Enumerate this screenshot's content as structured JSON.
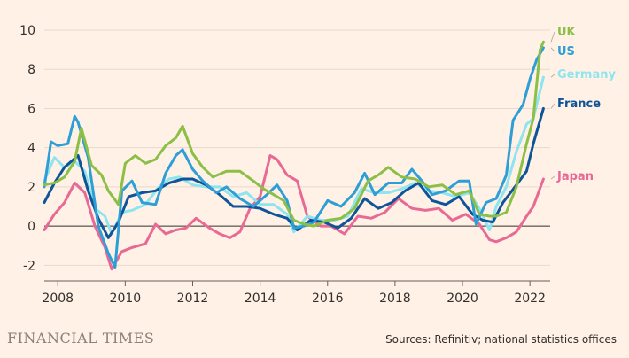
{
  "chart_data": {
    "type": "line",
    "title": "",
    "xlabel": "",
    "ylabel": "",
    "xlim": [
      2007.6,
      2022.6
    ],
    "ylim": [
      -2.8,
      10
    ],
    "y_ticks": [
      -2,
      0,
      2,
      4,
      6,
      8,
      10
    ],
    "x_ticks": [
      2008,
      2010,
      2012,
      2014,
      2016,
      2018,
      2020,
      2022
    ],
    "grid": true,
    "legend": "right, end of lines",
    "series": [
      {
        "name": "UK",
        "color": "#8CBF47",
        "x": [
          2007.6,
          2007.9,
          2008.2,
          2008.5,
          2008.7,
          2009.0,
          2009.3,
          2009.5,
          2009.8,
          2010.0,
          2010.3,
          2010.6,
          2010.9,
          2011.2,
          2011.5,
          2011.7,
          2012.0,
          2012.3,
          2012.6,
          2013.0,
          2013.4,
          2013.8,
          2014.1,
          2014.4,
          2014.7,
          2015.0,
          2015.3,
          2015.6,
          2016.0,
          2016.4,
          2016.8,
          2017.2,
          2017.5,
          2017.8,
          2018.2,
          2018.6,
          2019.0,
          2019.4,
          2019.8,
          2020.2,
          2020.5,
          2020.8,
          2021.0,
          2021.3,
          2021.6,
          2021.9,
          2022.1,
          2022.3,
          2022.4
        ],
        "values": [
          2.1,
          2.2,
          2.5,
          3.3,
          5.0,
          3.1,
          2.6,
          1.8,
          1.1,
          3.2,
          3.6,
          3.2,
          3.4,
          4.1,
          4.5,
          5.1,
          3.7,
          3.0,
          2.5,
          2.8,
          2.8,
          2.3,
          1.9,
          1.6,
          1.3,
          0.3,
          0.1,
          0.0,
          0.3,
          0.4,
          0.9,
          2.3,
          2.6,
          3.0,
          2.5,
          2.4,
          2.0,
          2.1,
          1.6,
          1.8,
          0.6,
          0.5,
          0.5,
          0.7,
          2.0,
          4.2,
          5.5,
          9.0,
          9.4
        ]
      },
      {
        "name": "US",
        "color": "#2E9ED6",
        "x": [
          2007.6,
          2007.8,
          2008.0,
          2008.3,
          2008.5,
          2008.6,
          2008.9,
          2009.2,
          2009.5,
          2009.7,
          2009.9,
          2010.2,
          2010.5,
          2010.9,
          2011.2,
          2011.5,
          2011.7,
          2012.0,
          2012.3,
          2012.7,
          2013.0,
          2013.4,
          2013.8,
          2014.2,
          2014.5,
          2014.8,
          2015.0,
          2015.3,
          2015.6,
          2016.0,
          2016.4,
          2016.8,
          2017.1,
          2017.4,
          2017.8,
          2018.2,
          2018.5,
          2018.8,
          2019.1,
          2019.5,
          2019.9,
          2020.2,
          2020.4,
          2020.7,
          2021.0,
          2021.3,
          2021.5,
          2021.8,
          2022.0,
          2022.2,
          2022.4
        ],
        "values": [
          2.0,
          4.3,
          4.1,
          4.2,
          5.6,
          5.3,
          3.5,
          0.0,
          -1.4,
          -2.1,
          1.8,
          2.3,
          1.2,
          1.1,
          2.7,
          3.6,
          3.9,
          2.9,
          2.3,
          1.7,
          2.0,
          1.4,
          1.0,
          1.6,
          2.1,
          1.3,
          -0.1,
          0.0,
          0.2,
          1.3,
          1.0,
          1.7,
          2.7,
          1.6,
          2.2,
          2.2,
          2.9,
          2.3,
          1.6,
          1.8,
          2.3,
          2.3,
          0.1,
          1.2,
          1.4,
          2.6,
          5.4,
          6.2,
          7.5,
          8.5,
          9.1
        ]
      },
      {
        "name": "Germany",
        "color": "#8EE4EF",
        "x": [
          2007.6,
          2007.9,
          2008.2,
          2008.5,
          2008.8,
          2009.1,
          2009.4,
          2009.6,
          2009.9,
          2010.2,
          2010.6,
          2011.0,
          2011.3,
          2011.6,
          2012.0,
          2012.4,
          2012.8,
          2013.2,
          2013.6,
          2014.0,
          2014.4,
          2014.8,
          2015.0,
          2015.4,
          2015.8,
          2016.2,
          2016.6,
          2017.0,
          2017.4,
          2017.8,
          2018.2,
          2018.6,
          2019.0,
          2019.4,
          2019.8,
          2020.2,
          2020.5,
          2020.8,
          2021.0,
          2021.3,
          2021.6,
          2021.9,
          2022.1,
          2022.4
        ],
        "values": [
          2.3,
          3.5,
          3.0,
          3.3,
          2.8,
          0.9,
          0.5,
          -0.4,
          0.7,
          0.8,
          1.1,
          2.0,
          2.4,
          2.5,
          2.1,
          2.0,
          2.0,
          1.5,
          1.7,
          1.1,
          1.1,
          0.6,
          -0.3,
          0.5,
          0.3,
          0.3,
          0.5,
          1.9,
          1.7,
          1.7,
          1.9,
          2.2,
          1.8,
          1.7,
          1.5,
          1.7,
          0.9,
          -0.2,
          1.0,
          2.0,
          3.8,
          5.2,
          5.5,
          7.6
        ]
      },
      {
        "name": "France",
        "color": "#0F5499",
        "x": [
          2007.6,
          2007.9,
          2008.2,
          2008.6,
          2008.9,
          2009.2,
          2009.5,
          2009.8,
          2010.1,
          2010.5,
          2010.9,
          2011.3,
          2011.7,
          2012.0,
          2012.4,
          2012.8,
          2013.2,
          2013.6,
          2014.0,
          2014.4,
          2014.8,
          2015.1,
          2015.5,
          2015.9,
          2016.3,
          2016.7,
          2017.1,
          2017.5,
          2017.9,
          2018.3,
          2018.7,
          2019.1,
          2019.5,
          2019.9,
          2020.3,
          2020.6,
          2020.9,
          2021.2,
          2021.6,
          2021.9,
          2022.1,
          2022.4
        ],
        "values": [
          1.2,
          2.2,
          3.0,
          3.6,
          1.8,
          0.4,
          -0.6,
          0.2,
          1.5,
          1.7,
          1.8,
          2.2,
          2.4,
          2.4,
          2.1,
          1.6,
          1.0,
          1.0,
          0.9,
          0.6,
          0.4,
          -0.2,
          0.3,
          0.2,
          -0.1,
          0.4,
          1.4,
          0.9,
          1.2,
          1.8,
          2.2,
          1.3,
          1.1,
          1.5,
          0.6,
          0.3,
          0.2,
          1.2,
          2.1,
          2.8,
          4.2,
          6.0
        ]
      },
      {
        "name": "Japan",
        "color": "#E96995",
        "x": [
          2007.6,
          2007.9,
          2008.2,
          2008.5,
          2008.8,
          2009.1,
          2009.4,
          2009.6,
          2009.9,
          2010.2,
          2010.6,
          2010.9,
          2011.2,
          2011.5,
          2011.8,
          2012.1,
          2012.5,
          2012.8,
          2013.1,
          2013.4,
          2013.7,
          2014.0,
          2014.3,
          2014.5,
          2014.8,
          2015.1,
          2015.4,
          2015.8,
          2016.1,
          2016.5,
          2016.9,
          2017.3,
          2017.7,
          2018.1,
          2018.5,
          2018.9,
          2019.3,
          2019.7,
          2020.1,
          2020.5,
          2020.8,
          2021.0,
          2021.3,
          2021.6,
          2021.9,
          2022.1,
          2022.4
        ],
        "values": [
          -0.2,
          0.6,
          1.2,
          2.2,
          1.7,
          0.0,
          -1.1,
          -2.2,
          -1.3,
          -1.1,
          -0.9,
          0.1,
          -0.4,
          -0.2,
          -0.1,
          0.4,
          -0.1,
          -0.4,
          -0.6,
          -0.3,
          0.9,
          1.5,
          3.6,
          3.4,
          2.6,
          2.3,
          0.5,
          0.0,
          0.0,
          -0.4,
          0.5,
          0.4,
          0.7,
          1.4,
          0.9,
          0.8,
          0.9,
          0.3,
          0.6,
          0.1,
          -0.7,
          -0.8,
          -0.6,
          -0.3,
          0.5,
          1.0,
          2.4
        ]
      }
    ],
    "source": "Sources: Refinitiv; national statistics offices",
    "publisher": "FINANCIAL TIMES"
  }
}
